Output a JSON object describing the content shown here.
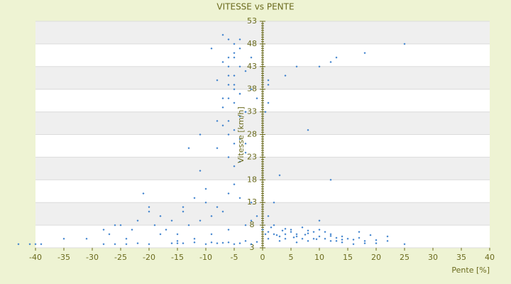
{
  "chart_data": {
    "type": "scatter",
    "title": "VITESSE vs PENTE",
    "x_label": "Pente [%]",
    "y_label": "Vitesse [km/h]",
    "xlim": [
      -40,
      40
    ],
    "xticks": [
      -40,
      -35,
      -30,
      -25,
      -20,
      -15,
      -10,
      -5,
      0,
      5,
      10,
      15,
      20,
      25,
      30,
      35,
      40
    ],
    "ylim": [
      3,
      53
    ],
    "yticks": [
      3,
      8,
      13,
      18,
      23,
      28,
      33,
      38,
      43,
      48,
      53
    ],
    "grid": true,
    "series": [
      {
        "color": "#3a7fcc",
        "x": [
          -7,
          -6,
          -5,
          -4,
          -5,
          -6,
          -7,
          -4,
          -3,
          -5,
          -8,
          -6,
          -5,
          -4,
          -6,
          -5,
          -7,
          -3,
          -4,
          -6,
          -7,
          -5,
          -6,
          -4,
          -5,
          -8,
          -3,
          -6,
          -4,
          -5,
          -9,
          -6,
          -4,
          -5,
          -7,
          -3,
          -8,
          -5,
          -6,
          -4,
          -21,
          -20,
          -18,
          -16,
          -14,
          -12,
          -10,
          -8,
          -6,
          -4,
          -25,
          -23,
          -22,
          -19,
          -17,
          -15,
          -13,
          -11,
          -9,
          -7,
          -27,
          -24,
          -18,
          -15,
          -12,
          -9,
          -6,
          -3,
          -2,
          -1,
          -35,
          -31,
          -28,
          -26,
          -20,
          -14,
          -10,
          -5,
          -2,
          -11,
          -43,
          -41,
          -40,
          -39,
          -28,
          -26,
          -24,
          -22,
          -20,
          -16,
          -14,
          -12,
          -10,
          -8,
          -6,
          -4,
          -2,
          16,
          18,
          20,
          22,
          25,
          -15,
          -9,
          -5,
          -3,
          14,
          12,
          -7,
          -1,
          0,
          1,
          2,
          3,
          4,
          5,
          6,
          7,
          8,
          9,
          10,
          11,
          12,
          13,
          14,
          15,
          16,
          17,
          18,
          20,
          1,
          3,
          5,
          7,
          9,
          11,
          13,
          4,
          6,
          8,
          2,
          4,
          6,
          8,
          10,
          12,
          14,
          17,
          19,
          22,
          0.5,
          1.5,
          2.5,
          3.5,
          5.5,
          7.5,
          9.5,
          10,
          1,
          2,
          25,
          18,
          13,
          12,
          10,
          6,
          4,
          1,
          1,
          8,
          12,
          3,
          0.5,
          1,
          -2,
          -1,
          -3,
          -11,
          -13,
          -2
        ],
        "values": [
          50,
          49,
          48,
          47,
          46,
          45,
          44,
          43,
          42,
          41,
          40,
          39,
          38,
          37,
          36,
          35,
          34,
          33,
          32,
          31,
          30,
          29,
          28,
          27,
          26,
          25,
          24,
          23,
          22,
          21,
          47,
          43,
          49,
          39,
          36,
          33,
          31,
          45,
          41,
          37,
          15,
          12,
          10,
          9,
          11,
          14,
          13,
          12,
          15,
          14,
          8,
          7,
          9,
          8,
          7,
          6,
          8,
          9,
          10,
          11,
          6,
          5,
          6,
          4,
          5,
          6,
          7,
          8,
          9,
          10,
          5,
          5,
          7,
          8,
          11,
          12,
          16,
          17,
          13,
          20,
          3.8,
          3.8,
          3.8,
          3.8,
          3.8,
          3.8,
          3.8,
          4,
          3.8,
          4,
          4,
          4.2,
          3.8,
          4,
          4.2,
          4,
          3.8,
          3.8,
          4,
          4,
          4.5,
          3.8,
          4.5,
          4.2,
          3.8,
          4.5,
          4.2,
          4.5,
          4.1,
          4.3,
          7,
          6.5,
          6,
          5.5,
          5,
          7,
          6,
          5,
          4.5,
          6.5,
          5.5,
          5,
          6,
          4.5,
          5.5,
          5,
          4.8,
          5.2,
          4.5,
          4.7,
          5,
          4.5,
          6.5,
          7.5,
          5,
          6.5,
          5.2,
          7.2,
          4.2,
          6.8,
          8,
          6,
          5.5,
          6.2,
          7,
          5.6,
          4.8,
          6.5,
          5.8,
          5.5,
          6,
          7.5,
          5.8,
          6.8,
          5.3,
          5.9,
          4.9,
          9,
          10,
          13,
          48,
          46,
          45,
          44,
          43,
          43,
          41,
          39,
          35,
          29,
          18,
          19,
          33,
          40,
          38,
          36,
          26,
          28,
          25,
          45
        ]
      }
    ]
  }
}
